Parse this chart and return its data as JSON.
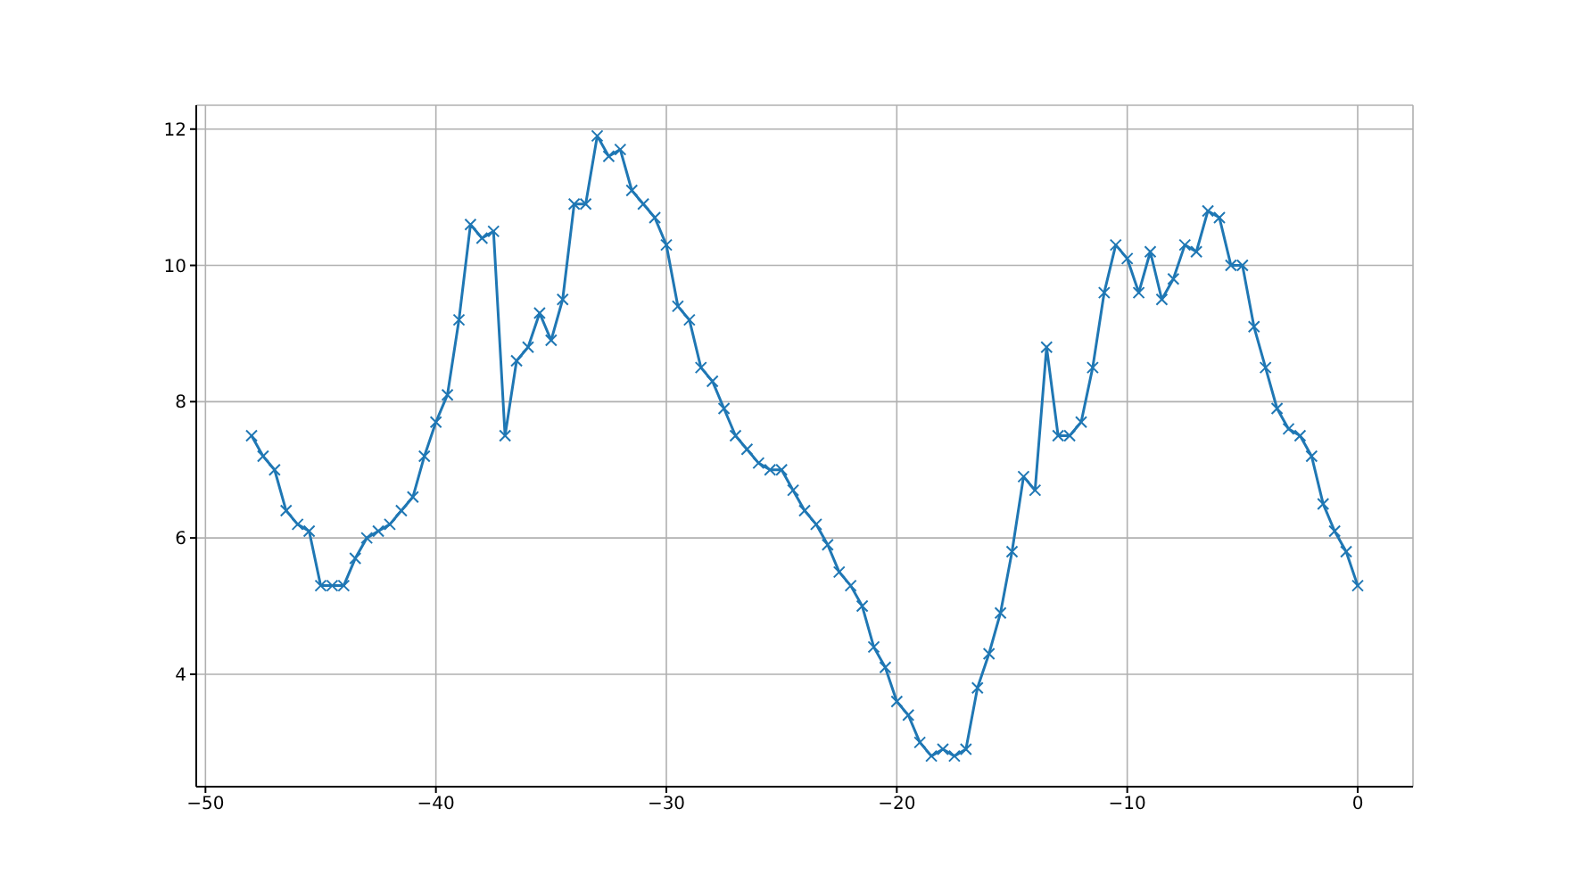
{
  "chart_data": {
    "type": "line",
    "x": [
      -48,
      -47.5,
      -47,
      -46.5,
      -46,
      -45.5,
      -45,
      -44.5,
      -44,
      -43.5,
      -43,
      -42.5,
      -42,
      -41.5,
      -41,
      -40.5,
      -40,
      -39.5,
      -39,
      -38.5,
      -38,
      -37.5,
      -37,
      -36.5,
      -36,
      -35.5,
      -35,
      -34.5,
      -34,
      -33.5,
      -33,
      -32.5,
      -32,
      -31.5,
      -31,
      -30.5,
      -30,
      -29.5,
      -29,
      -28.5,
      -28,
      -27.5,
      -27,
      -26.5,
      -26,
      -25.5,
      -25,
      -24.5,
      -24,
      -23.5,
      -23,
      -22.5,
      -22,
      -21.5,
      -21,
      -20.5,
      -20,
      -19.5,
      -19,
      -18.5,
      -18,
      -17.5,
      -17,
      -16.5,
      -16,
      -15.5,
      -15,
      -14.5,
      -14,
      -13.5,
      -13,
      -12.5,
      -12,
      -11.5,
      -11,
      -10.5,
      -10,
      -9.5,
      -9,
      -8.5,
      -8,
      -7.5,
      -7,
      -6.5,
      -6,
      -5.5,
      -5,
      -4.5,
      -4,
      -3.5,
      -3,
      -2.5,
      -2,
      -1.5,
      -1,
      -0.5,
      0
    ],
    "series": [
      {
        "color": "#1f77b4",
        "values": [
          7.5,
          7.2,
          7.0,
          6.4,
          6.2,
          6.1,
          5.3,
          5.3,
          5.3,
          5.7,
          6.0,
          6.1,
          6.2,
          6.4,
          6.6,
          7.2,
          7.7,
          8.1,
          9.2,
          10.6,
          10.4,
          10.5,
          7.5,
          8.6,
          8.8,
          9.3,
          8.9,
          9.5,
          10.9,
          10.9,
          11.9,
          11.6,
          11.7,
          11.1,
          10.9,
          10.7,
          10.3,
          9.4,
          9.2,
          8.5,
          8.3,
          7.9,
          7.5,
          7.3,
          7.1,
          7.0,
          7.0,
          6.7,
          6.4,
          6.2,
          5.9,
          5.5,
          5.3,
          5.0,
          4.4,
          4.1,
          3.6,
          3.4,
          3.0,
          2.8,
          2.9,
          2.8,
          2.9,
          3.8,
          4.3,
          4.9,
          5.8,
          6.9,
          6.7,
          8.8,
          7.5,
          7.5,
          7.7,
          8.5,
          9.6,
          10.3,
          10.1,
          9.6,
          10.2,
          9.5,
          9.8,
          10.3,
          10.2,
          10.8,
          10.7,
          10.0,
          10.0,
          9.1,
          8.5,
          7.9,
          7.6,
          7.5,
          7.2,
          6.5,
          6.1,
          5.8,
          5.3
        ]
      }
    ],
    "xlim": [
      -50.4,
      2.4
    ],
    "ylim": [
      2.35,
      12.35
    ],
    "xticks": [
      -50,
      -40,
      -30,
      -20,
      -10,
      0
    ],
    "yticks": [
      4,
      6,
      8,
      10,
      12
    ],
    "grid": true,
    "marker": "cross"
  }
}
